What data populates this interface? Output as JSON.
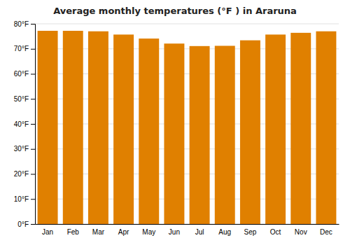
{
  "chart_data": {
    "type": "bar",
    "title": "Average monthly temperatures (°F ) in Araruna",
    "categories": [
      "Jan",
      "Feb",
      "Mar",
      "Apr",
      "May",
      "Jun",
      "Jul",
      "Aug",
      "Sep",
      "Oct",
      "Nov",
      "Dec"
    ],
    "values": [
      77.2,
      77.2,
      77.0,
      75.7,
      74.1,
      72.1,
      71.1,
      71.2,
      73.4,
      75.7,
      76.4,
      77.0
    ],
    "color": "#E08000",
    "ylim": [
      0,
      80
    ],
    "yticks": [
      {
        "value": 0,
        "label": "0°F"
      },
      {
        "value": 10,
        "label": "10°F"
      },
      {
        "value": 20,
        "label": "20°F"
      },
      {
        "value": 30,
        "label": "30°F"
      },
      {
        "value": 40,
        "label": "40°F"
      },
      {
        "value": 50,
        "label": "50°F"
      },
      {
        "value": 60,
        "label": "60°F"
      },
      {
        "value": 70,
        "label": "70°F"
      },
      {
        "value": 80,
        "label": "80°F"
      }
    ],
    "grid": true
  }
}
